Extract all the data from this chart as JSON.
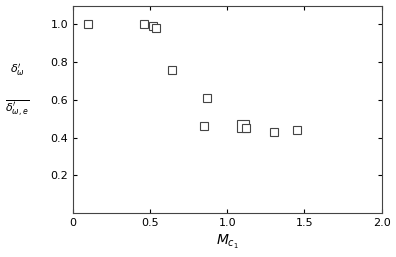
{
  "x": [
    0.1,
    0.46,
    0.52,
    0.54,
    0.64,
    0.85,
    0.87,
    1.1,
    1.12,
    1.3,
    1.45
  ],
  "y": [
    1.0,
    1.0,
    0.99,
    0.98,
    0.76,
    0.46,
    0.61,
    0.46,
    0.45,
    0.43,
    0.44
  ],
  "marker_sizes": [
    5.5,
    5.5,
    5.5,
    5.5,
    5.5,
    5.5,
    5.5,
    8.5,
    5.5,
    5.5,
    5.5
  ],
  "xlim": [
    0,
    2.0
  ],
  "ylim": [
    0,
    1.1
  ],
  "xticks": [
    0,
    0.5,
    1.0,
    1.5,
    2.0
  ],
  "xticklabels": [
    "0",
    "0.5",
    "1.0",
    "1.5",
    "2.0"
  ],
  "yticks": [
    0.2,
    0.4,
    0.6,
    0.8,
    1.0
  ],
  "yticklabels": [
    "0.2",
    "0.4",
    "0.6",
    "0.8",
    "1.0"
  ],
  "xlabel": "$M_{c_1}$",
  "ylabel_top": "$\\delta^{\\prime}_{\\omega}$",
  "ylabel_bot": "$\\delta^{\\prime}_{\\omega,e}$",
  "marker": "s",
  "marker_facecolor": "white",
  "edge_color": "#444444",
  "background_color": "#ffffff",
  "figsize": [
    3.96,
    2.57
  ],
  "dpi": 100,
  "tick_fontsize": 8,
  "xlabel_fontsize": 10,
  "ylabel_fontsize": 8
}
